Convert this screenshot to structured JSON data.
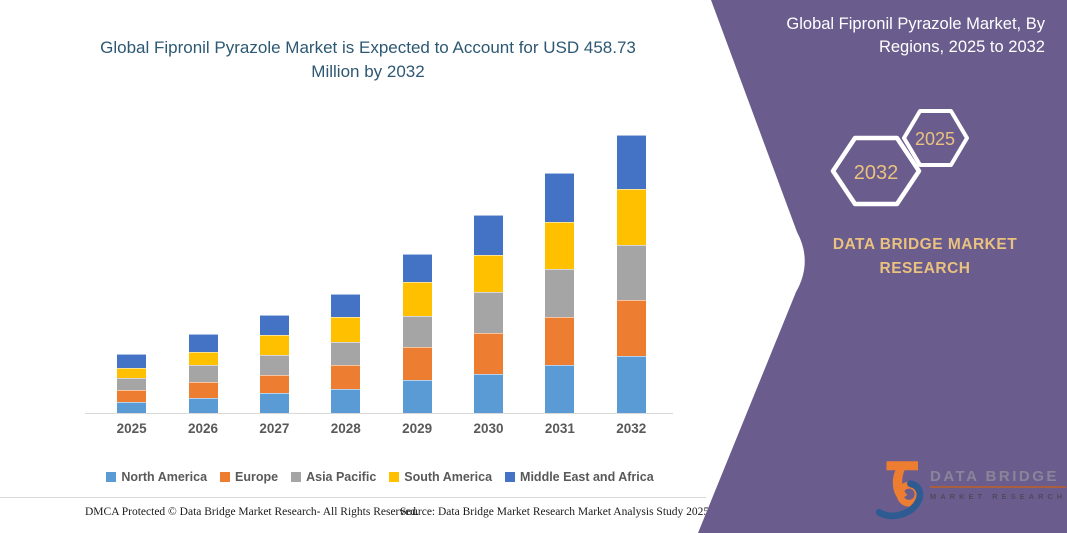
{
  "colors": {
    "panel_purple": "#6A5D8E",
    "headline_blue": "#2D5873",
    "axis_gray": "#595959",
    "gold": "#EAC17E",
    "axis_line": "#D9D9D9",
    "footer_text": "#1A1A1A",
    "logo_orange": "#ED7D31",
    "logo_blue": "#2F5B93"
  },
  "chart_data": {
    "type": "bar",
    "stacked": true,
    "title": "Global Fipronil Pyrazole Market is Expected to Account for USD 458.73 Million by 2032",
    "unit": "USD Million",
    "categories": [
      "2025",
      "2026",
      "2027",
      "2028",
      "2029",
      "2030",
      "2031",
      "2032"
    ],
    "series": [
      {
        "name": "North America",
        "color": "#5B9BD5",
        "values": [
          18.2,
          24.8,
          33.0,
          39.6,
          54.5,
          64.4,
          79.2,
          94.1
        ]
      },
      {
        "name": "Europe",
        "color": "#ED7D31",
        "values": [
          19.8,
          26.4,
          29.7,
          39.6,
          54.5,
          67.7,
          79.2,
          92.4
        ]
      },
      {
        "name": "Asia Pacific",
        "color": "#A5A5A5",
        "values": [
          19.8,
          28.1,
          33.0,
          38.0,
          51.2,
          67.7,
          79.2,
          90.8
        ]
      },
      {
        "name": "South America",
        "color": "#FFC000",
        "values": [
          16.5,
          21.5,
          33.0,
          41.3,
          56.1,
          61.1,
          77.6,
          92.4
        ]
      },
      {
        "name": "Middle East and Africa",
        "color": "#4472C4",
        "values": [
          23.1,
          29.7,
          33.0,
          38.0,
          46.2,
          66.0,
          80.9,
          89.0
        ]
      }
    ],
    "totals_by_year": [
      97.4,
      130.5,
      161.7,
      196.5,
      262.5,
      326.9,
      396.1,
      458.73
    ],
    "ylim": [
      0,
      500
    ],
    "value_axis_visible": false,
    "grid": false,
    "legend_position": "bottom"
  },
  "right_panel": {
    "title": "Global Fipronil Pyrazole Market, By Regions, 2025 to 2032",
    "hexagon_large": "2032",
    "hexagon_small": "2025",
    "brand": "DATA BRIDGE MARKET RESEARCH"
  },
  "logo": {
    "name": "DATA BRIDGE",
    "subtitle": "MARKET RESEARCH"
  },
  "footer": {
    "left": "DMCA Protected © Data Bridge Market Research- All Rights Reserved.",
    "right": "Source: Data Bridge Market Research Market Analysis Study 2025"
  }
}
